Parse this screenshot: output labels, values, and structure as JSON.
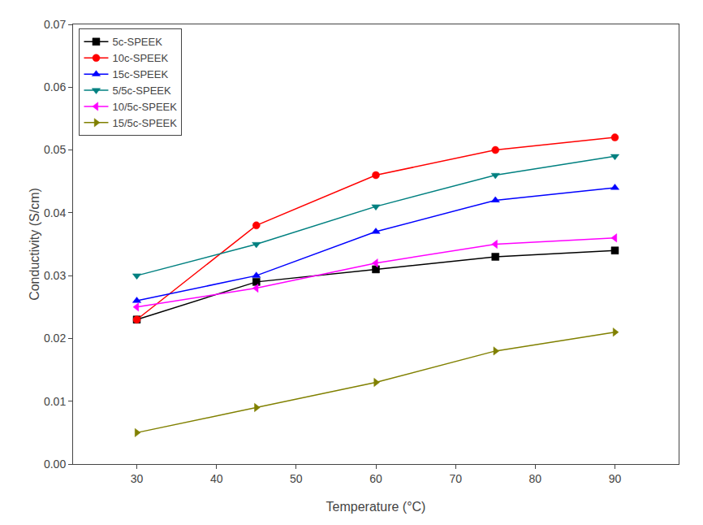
{
  "chart_data": {
    "type": "line",
    "x": [
      30,
      45,
      60,
      75,
      90
    ],
    "series": [
      {
        "name": "5c-SPEEK",
        "color": "#000000",
        "marker": "square",
        "values": [
          0.023,
          0.029,
          0.031,
          0.033,
          0.034
        ]
      },
      {
        "name": "10c-SPEEK",
        "color": "#ff0000",
        "marker": "circle",
        "values": [
          0.023,
          0.038,
          0.046,
          0.05,
          0.052
        ]
      },
      {
        "name": "15c-SPEEK",
        "color": "#0000ff",
        "marker": "triangle-up",
        "values": [
          0.026,
          0.03,
          0.037,
          0.042,
          0.044
        ]
      },
      {
        "name": "5/5c-SPEEK",
        "color": "#008080",
        "marker": "triangle-down",
        "values": [
          0.03,
          0.035,
          0.041,
          0.046,
          0.049
        ]
      },
      {
        "name": "10/5c-SPEEK",
        "color": "#ff00ff",
        "marker": "triangle-left",
        "values": [
          0.025,
          0.028,
          0.032,
          0.035,
          0.036
        ]
      },
      {
        "name": "15/5c-SPEEK",
        "color": "#808000",
        "marker": "triangle-right",
        "values": [
          0.005,
          0.009,
          0.013,
          0.018,
          0.021
        ]
      }
    ],
    "x_label": "Temperature (°C)",
    "y_label": "Conductivity (S/cm)",
    "xlim": [
      22,
      98
    ],
    "ylim": [
      0.0,
      0.07
    ],
    "xticks": [
      30,
      40,
      50,
      60,
      70,
      80,
      90
    ],
    "yticks": [
      {
        "value": 0,
        "label": "0.00"
      },
      0.01,
      0.02,
      0.03,
      0.04,
      0.05,
      0.06,
      0.07
    ],
    "legend": "upper left",
    "grid": false
  }
}
